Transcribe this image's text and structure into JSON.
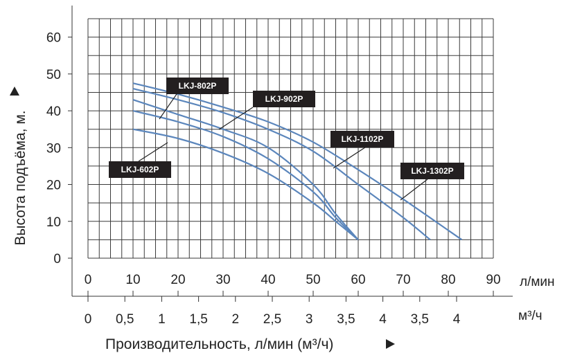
{
  "chart_data": {
    "type": "line",
    "ylabel": "Высота подъёма, м.",
    "xlabel": "Производительность, л/мин (м³/ч)",
    "x_unit_primary": "л/мин",
    "x_unit_secondary": "м³/ч",
    "xlim": [
      0,
      90
    ],
    "ylim": [
      0,
      65
    ],
    "x_ticks": [
      "0",
      "10",
      "20",
      "30",
      "40",
      "50",
      "60",
      "70",
      "80",
      "90"
    ],
    "x_ticks_secondary": [
      "0",
      "0,5",
      "1",
      "1,5",
      "2",
      "2,5",
      "3",
      "3,5",
      "4",
      "3,5",
      "4"
    ],
    "y_ticks": [
      "0",
      "10",
      "20",
      "30",
      "40",
      "50",
      "60"
    ],
    "grid": true,
    "line_color": "#5b86bc",
    "label_bg_color": "#231f20",
    "series": [
      {
        "name": "LKJ-602P",
        "x": [
          10,
          20,
          30,
          40,
          50,
          55,
          60
        ],
        "y": [
          35,
          32.5,
          28.5,
          23,
          15,
          10,
          5
        ]
      },
      {
        "name": "LKJ-802P",
        "x": [
          10,
          20,
          30,
          40,
          50,
          55,
          60
        ],
        "y": [
          40,
          37,
          33,
          27,
          18,
          11,
          5
        ]
      },
      {
        "name": "LKJ-902P",
        "x": [
          10,
          20,
          30,
          40,
          50,
          55,
          60
        ],
        "y": [
          43,
          39,
          35,
          30,
          20,
          12,
          5
        ]
      },
      {
        "name": "LKJ-1102P",
        "x": [
          10,
          20,
          30,
          40,
          50,
          60,
          70,
          76
        ],
        "y": [
          46,
          43,
          39.5,
          35,
          29,
          20,
          11,
          5
        ]
      },
      {
        "name": "LKJ-1302P",
        "x": [
          10,
          20,
          30,
          40,
          50,
          60,
          70,
          83
        ],
        "y": [
          47.5,
          44.5,
          41,
          37,
          31.5,
          24,
          16,
          5
        ]
      }
    ],
    "labels": [
      "LKJ-802P",
      "LKJ-902P",
      "LKJ-1102P",
      "LKJ-1302P",
      "LKJ-602P"
    ]
  }
}
